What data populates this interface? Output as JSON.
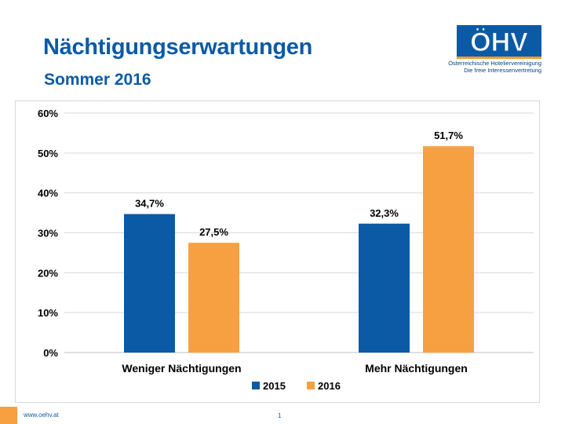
{
  "header": {
    "title": "Nächtigungserwartungen",
    "subtitle": "Sommer 2016"
  },
  "logo": {
    "mark": "ÖHV",
    "line1": "Österreichische Hoteliervereinigung",
    "line2": "Die freie Interessenvertretung"
  },
  "footer": {
    "url": "www.oehv.at",
    "page": "1"
  },
  "colors": {
    "brand_blue": "#0b5aa6",
    "brand_orange": "#f39c2c"
  },
  "chart_data": {
    "type": "bar",
    "categories": [
      "Weniger Nächtigungen",
      "Mehr Nächtigungen"
    ],
    "series": [
      {
        "name": "2015",
        "values": [
          34.7,
          32.3
        ],
        "labels": [
          "34,7%",
          "32,3%"
        ],
        "color": "#0b5aa6"
      },
      {
        "name": "2016",
        "values": [
          27.5,
          51.7
        ],
        "labels": [
          "27,5%",
          "51,7%"
        ],
        "color": "#f7a042"
      }
    ],
    "ylim": [
      0,
      60
    ],
    "yticks": [
      0,
      10,
      20,
      30,
      40,
      50,
      60
    ],
    "ytick_labels": [
      "0%",
      "10%",
      "20%",
      "30%",
      "40%",
      "50%",
      "60%"
    ],
    "grid": true,
    "legend": "bottom-center"
  }
}
